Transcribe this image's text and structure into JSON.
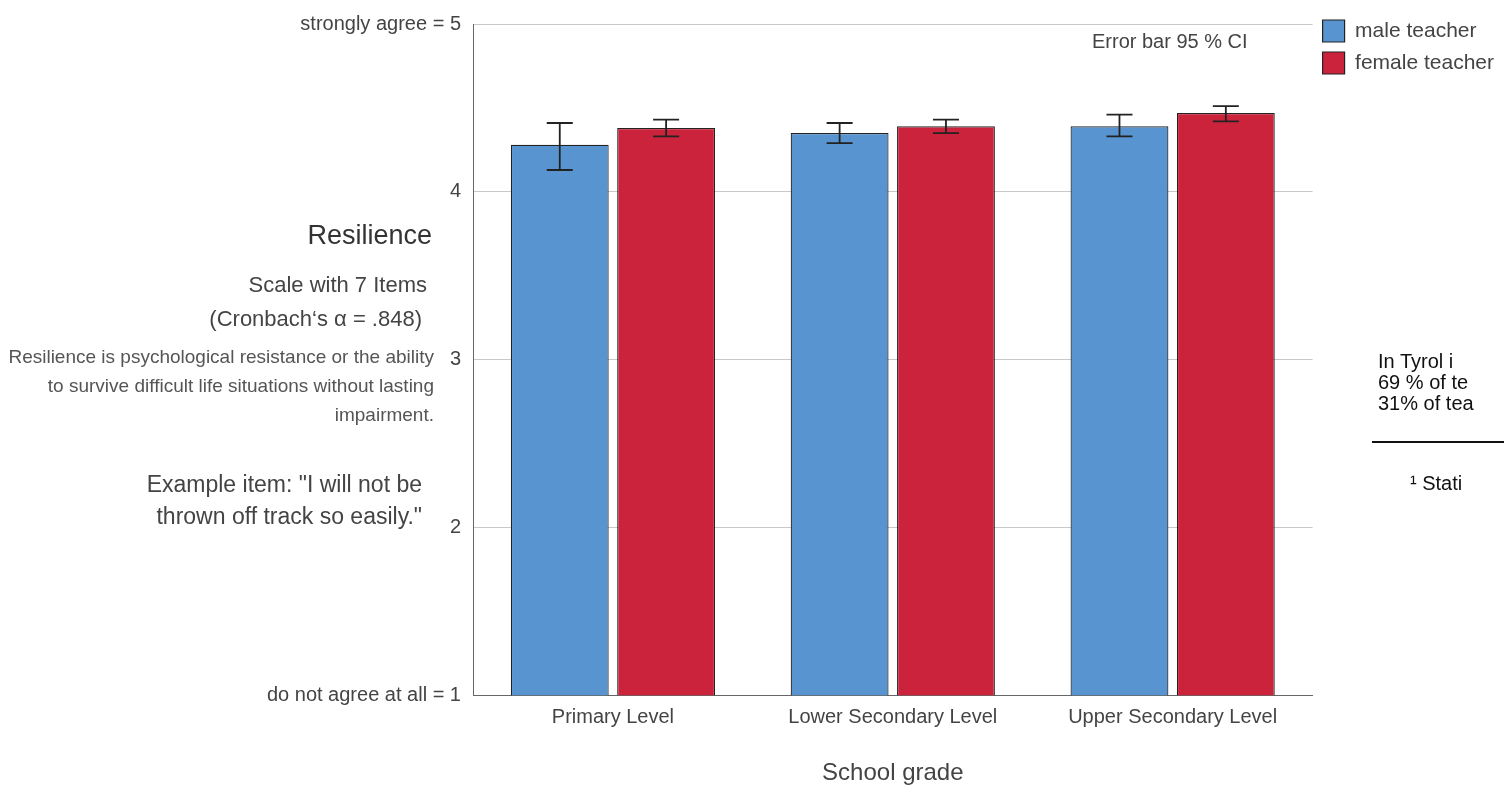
{
  "chart_data": {
    "type": "bar",
    "ylabel": "Resilience",
    "xlabel": "School grade",
    "categories": [
      "Primary Level",
      "Lower Secondary Level",
      "Upper Secondary Level"
    ],
    "series": [
      {
        "name": "male teacher",
        "color": "#5895d0",
        "values": [
          4.28,
          4.35,
          4.39
        ],
        "errors": [
          [
            4.13,
            4.41
          ],
          [
            4.29,
            4.41
          ],
          [
            4.33,
            4.46
          ]
        ]
      },
      {
        "name": "female teacher",
        "color": "#cc233c",
        "values": [
          4.38,
          4.39,
          4.47
        ],
        "errors": [
          [
            4.33,
            4.43
          ],
          [
            4.35,
            4.43
          ],
          [
            4.42,
            4.51
          ]
        ]
      }
    ],
    "ylim": [
      1,
      5
    ],
    "yticks": [
      {
        "value": 5,
        "label": "strongly agree = 5"
      },
      4,
      3,
      2,
      {
        "value": 1,
        "label": "do not agree at all = 1"
      }
    ],
    "grid": "y",
    "legend": "top right",
    "annotations": [
      "Scale with 7 Items",
      "(Cronbach‘s α = .848)",
      "Resilience is psychological resistance or the ability to survive difficult life situations without lasting impairment.",
      "Example item: \"I will not be thrown off track so easily.\"",
      "Error bar 95 % CI",
      "In Tyrol i",
      "69 % of te",
      "31% of tea",
      "¹ Stati"
    ]
  }
}
